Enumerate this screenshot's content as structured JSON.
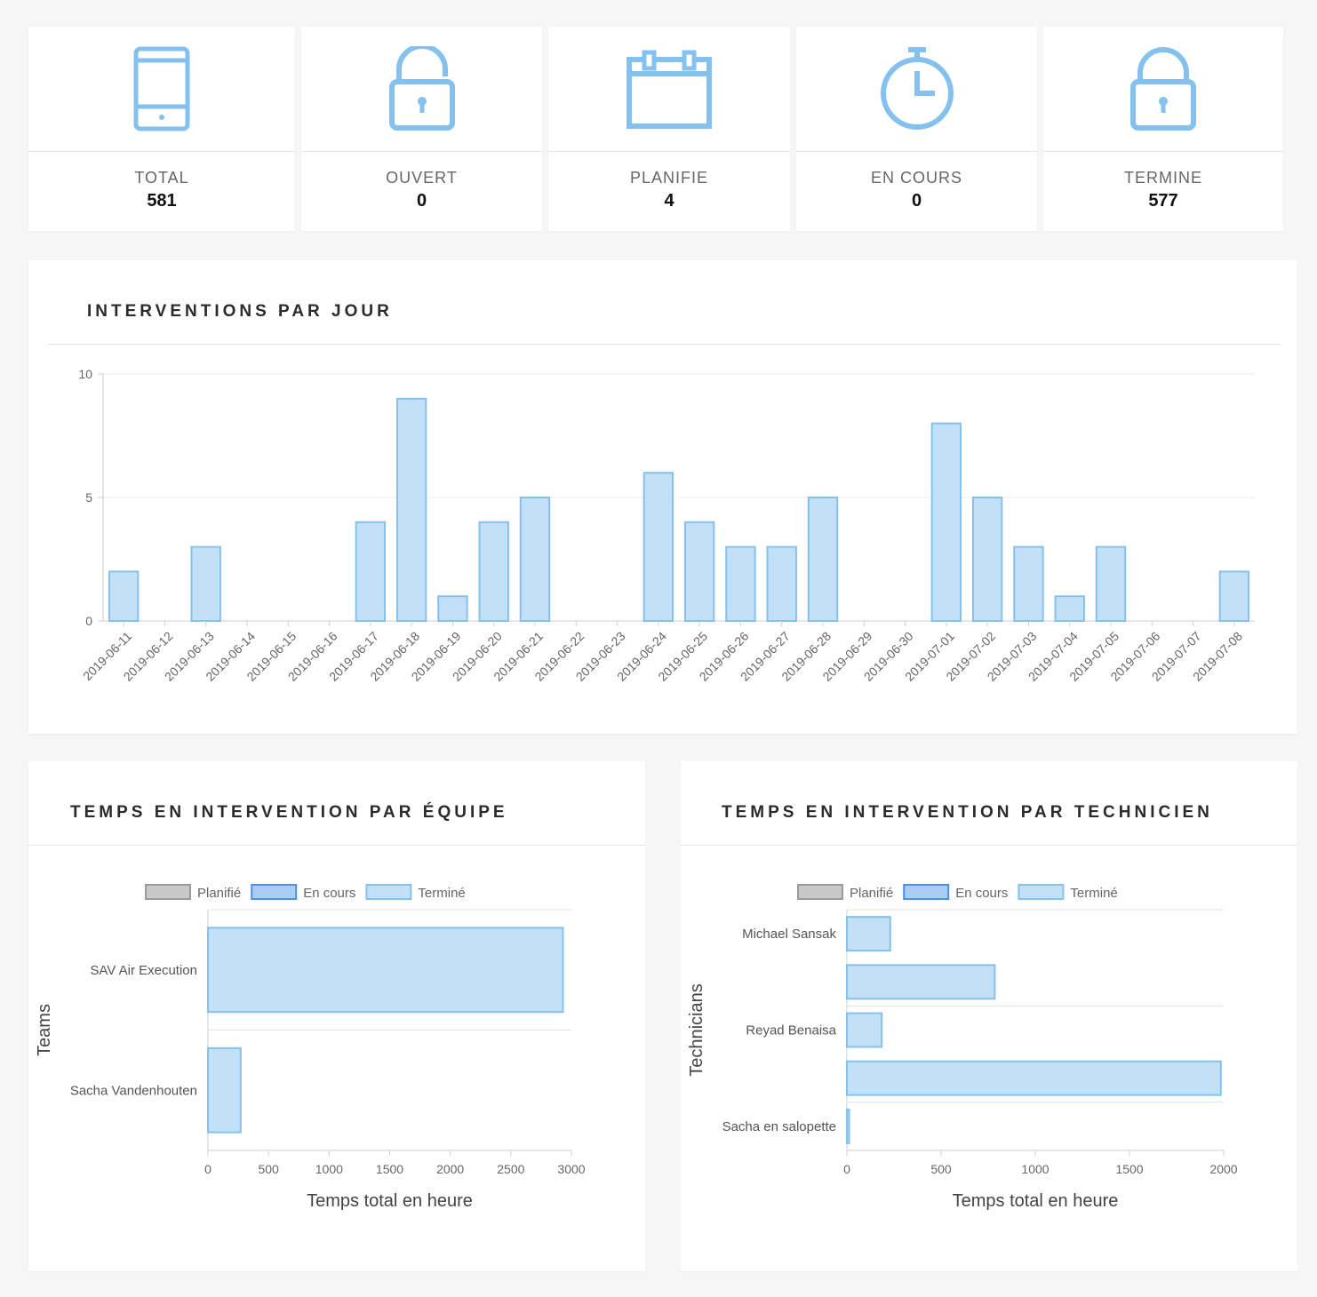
{
  "stats": [
    {
      "icon": "tablet-icon",
      "label": "TOTAL",
      "value": "581"
    },
    {
      "icon": "unlock-icon",
      "label": "OUVERT",
      "value": "0"
    },
    {
      "icon": "calendar-icon",
      "label": "PLANIFIE",
      "value": "4"
    },
    {
      "icon": "stopwatch-icon",
      "label": "EN COURS",
      "value": "0"
    },
    {
      "icon": "lock-icon",
      "label": "TERMINE",
      "value": "577"
    }
  ],
  "colors": {
    "accent": "#85c1ef",
    "bar_fill": "#c2e0f7",
    "bar_stroke": "#86c1ec",
    "planifie_fill": "#c8c8c8",
    "planifie_stroke": "#9a9a9a",
    "en_cours_fill": "#a9cdf5",
    "en_cours_stroke": "#4d8fe0"
  },
  "panels": {
    "daily_title": "INTERVENTIONS PAR JOUR",
    "team_title": "TEMPS EN INTERVENTION PAR ÉQUIPE",
    "tech_title": "TEMPS EN INTERVENTION PAR TECHNICIEN"
  },
  "chart_data": [
    {
      "type": "bar",
      "title": "INTERVENTIONS PAR JOUR",
      "categories": [
        "2019-06-11",
        "2019-06-12",
        "2019-06-13",
        "2019-06-14",
        "2019-06-15",
        "2019-06-16",
        "2019-06-17",
        "2019-06-18",
        "2019-06-19",
        "2019-06-20",
        "2019-06-21",
        "2019-06-22",
        "2019-06-23",
        "2019-06-24",
        "2019-06-25",
        "2019-06-26",
        "2019-06-27",
        "2019-06-28",
        "2019-06-29",
        "2019-06-30",
        "2019-07-01",
        "2019-07-02",
        "2019-07-03",
        "2019-07-04",
        "2019-07-05",
        "2019-07-06",
        "2019-07-07",
        "2019-07-08"
      ],
      "values": [
        2,
        0,
        3,
        0,
        0,
        0,
        4,
        9,
        1,
        4,
        5,
        0,
        0,
        6,
        4,
        3,
        3,
        5,
        0,
        0,
        8,
        5,
        3,
        1,
        3,
        0,
        0,
        2
      ],
      "yticks": [
        0,
        5,
        10
      ],
      "ylim": [
        0,
        10
      ],
      "grid": true
    },
    {
      "type": "bar",
      "orientation": "horizontal",
      "title": "TEMPS EN INTERVENTION PAR ÉQUIPE",
      "categories": [
        "SAV Air Execution",
        "Sacha Vandenhouten"
      ],
      "series": [
        {
          "name": "Planifié",
          "values": [
            0,
            0
          ]
        },
        {
          "name": "En cours",
          "values": [
            0,
            0
          ]
        },
        {
          "name": "Terminé",
          "values": [
            2930,
            270
          ]
        }
      ],
      "xticks": [
        0,
        500,
        1000,
        1500,
        2000,
        2500,
        3000
      ],
      "xlim": [
        0,
        3000
      ],
      "xlabel": "Temps total en heure",
      "ylabel": "Teams",
      "legend": "top"
    },
    {
      "type": "bar",
      "orientation": "horizontal",
      "title": "TEMPS EN INTERVENTION PAR TECHNICIEN",
      "categories": [
        "Michael Sansak",
        "",
        "Reyad Benaisa",
        "",
        "Sacha en salopette"
      ],
      "series": [
        {
          "name": "Planifié",
          "values": [
            0,
            0,
            0,
            0,
            0
          ]
        },
        {
          "name": "En cours",
          "values": [
            0,
            0,
            0,
            0,
            0
          ]
        },
        {
          "name": "Terminé",
          "values": [
            230,
            785,
            185,
            1985,
            12
          ]
        }
      ],
      "xticks": [
        0,
        500,
        1000,
        1500,
        2000
      ],
      "xlim": [
        0,
        2000
      ],
      "xlabel": "Temps total en heure",
      "ylabel": "Technicians",
      "legend": "top"
    }
  ]
}
